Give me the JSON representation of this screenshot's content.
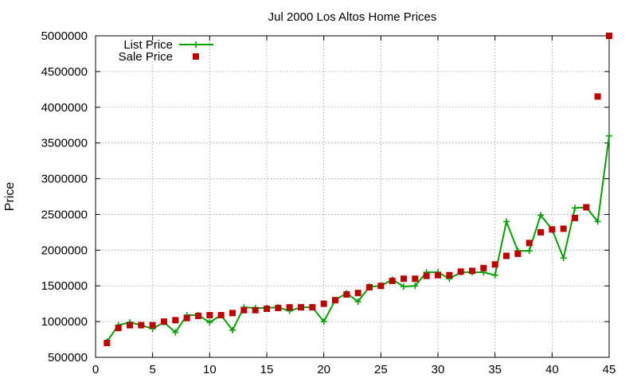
{
  "chart_data": {
    "type": "line",
    "title": "Jul 2000 Los Altos Home Prices",
    "xlabel": "",
    "ylabel": "Price",
    "xlim": [
      0,
      45
    ],
    "ylim": [
      500000,
      5000000
    ],
    "x_ticks": [
      0,
      5,
      10,
      15,
      20,
      25,
      30,
      35,
      40,
      45
    ],
    "y_ticks": [
      500000,
      1000000,
      1500000,
      2000000,
      2500000,
      3000000,
      3500000,
      4000000,
      4500000,
      5000000
    ],
    "grid": true,
    "legend_position": "top-left",
    "colors": {
      "list": "#00a000",
      "sale": "#c00000"
    },
    "x": [
      1,
      2,
      3,
      4,
      5,
      6,
      7,
      8,
      9,
      10,
      11,
      12,
      13,
      14,
      15,
      16,
      17,
      18,
      19,
      20,
      21,
      22,
      23,
      24,
      25,
      26,
      27,
      28,
      29,
      30,
      31,
      32,
      33,
      34,
      35,
      36,
      37,
      38,
      39,
      40,
      41,
      42,
      43,
      44,
      45
    ],
    "series": [
      {
        "name": "List Price",
        "style": "linespoints",
        "values": [
          720000,
          950000,
          990000,
          950000,
          900000,
          990000,
          850000,
          1090000,
          1090000,
          990000,
          1090000,
          880000,
          1200000,
          1190000,
          1190000,
          1200000,
          1150000,
          1200000,
          1200000,
          1000000,
          1300000,
          1400000,
          1280000,
          1490000,
          1500000,
          1590000,
          1490000,
          1500000,
          1690000,
          1690000,
          1600000,
          1690000,
          1690000,
          1690000,
          1650000,
          2400000,
          1990000,
          1990000,
          2490000,
          2290000,
          1890000,
          2590000,
          2600000,
          2400000,
          3600000
        ]
      },
      {
        "name": "Sale Price",
        "style": "points",
        "values": [
          700000,
          910000,
          950000,
          950000,
          950000,
          1000000,
          1020000,
          1050000,
          1080000,
          1090000,
          1090000,
          1120000,
          1160000,
          1160000,
          1180000,
          1190000,
          1200000,
          1200000,
          1200000,
          1250000,
          1300000,
          1380000,
          1400000,
          1480000,
          1500000,
          1570000,
          1600000,
          1600000,
          1640000,
          1650000,
          1650000,
          1700000,
          1710000,
          1750000,
          1800000,
          1920000,
          1950000,
          2100000,
          2250000,
          2290000,
          2300000,
          2450000,
          2600000,
          4150000,
          5000000
        ]
      }
    ]
  }
}
